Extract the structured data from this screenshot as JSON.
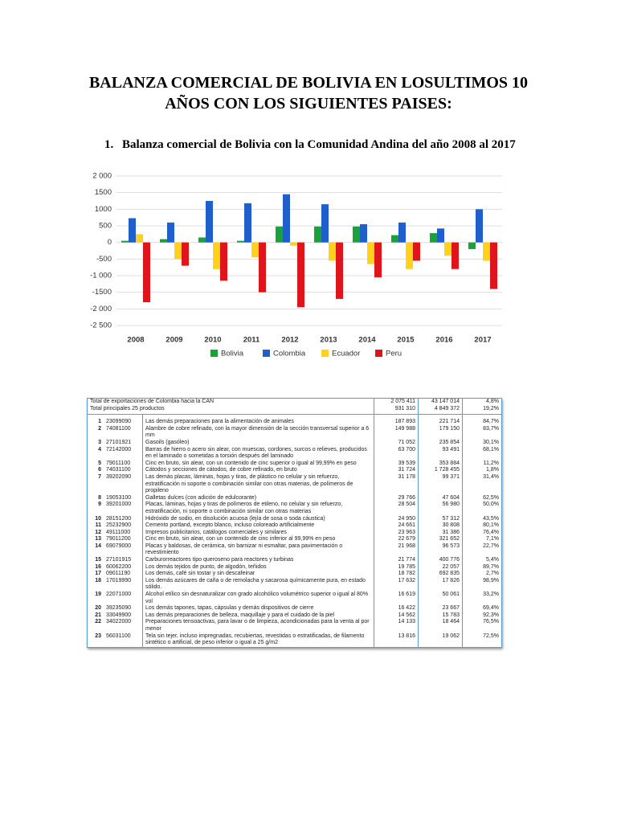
{
  "title": "BALANZA COMERCIAL DE BOLIVIA EN LOSULTIMOS 10 AÑOS CON LOS SIGUIENTES PAISES:",
  "section": {
    "number": "1.",
    "text": "Balanza comercial de Bolivia con la Comunidad Andina del año 2008 al 2017"
  },
  "chart_data": {
    "type": "bar",
    "categories": [
      "2008",
      "2009",
      "2010",
      "2011",
      "2012",
      "2013",
      "2014",
      "2015",
      "2016",
      "2017"
    ],
    "series": [
      {
        "name": "Bolivia",
        "color": "#1aa23a",
        "values": [
          50,
          100,
          150,
          50,
          480,
          480,
          480,
          220,
          280,
          -200
        ]
      },
      {
        "name": "Colombia",
        "color": "#1f5fcc",
        "values": [
          730,
          600,
          1250,
          1180,
          1450,
          1150,
          550,
          600,
          420,
          1000
        ]
      },
      {
        "name": "Ecuador",
        "color": "#ffd21a",
        "values": [
          250,
          -500,
          -800,
          -450,
          -100,
          -550,
          -650,
          -800,
          -400,
          -550
        ]
      },
      {
        "name": "Peru",
        "color": "#e0141b",
        "values": [
          -1800,
          -700,
          -1150,
          -1500,
          -1950,
          -1700,
          -1050,
          -550,
          -800,
          -1400
        ]
      }
    ],
    "ylim": [
      -2500,
      2000
    ],
    "yticks": [
      {
        "value": 2000,
        "label": "2 000"
      },
      1500,
      1000,
      500,
      0,
      -500,
      {
        "value": -1000,
        "label": "-1 000"
      },
      -1500,
      {
        "value": -2000,
        "label": "-2 000"
      },
      {
        "value": -2500,
        "label": "-2 500"
      }
    ],
    "grid": true
  },
  "table": {
    "header": [
      [
        "Total de exportaciones de Colombia hacia la CAN",
        "2 075 411",
        "43 147 014",
        "4,8%"
      ],
      [
        "Total principales 25 productos",
        "931 310",
        "4 849 372",
        "19,2%"
      ]
    ],
    "rows": [
      [
        "1",
        "23099090",
        "Las demás preparaciones para la alimentación de animales",
        "187 893",
        "221 714",
        "84,7%"
      ],
      [
        "2",
        "74081100",
        "Alambre de cobre refinado, con la mayor dimensión de la sección transversal superior a 6 mm",
        "149 988",
        "179 150",
        "83,7%"
      ],
      [
        "3",
        "27101921",
        "Gasoils (gasóleo)",
        "71 052",
        "235 854",
        "30,1%"
      ],
      [
        "4",
        "72142000",
        "Barras de hierro o acero sin alear, con muescas, cordones, surcos o relieves, producidos en el laminado o sometidas a torsión después del laminado",
        "63 700",
        "93 491",
        "68,1%"
      ],
      [
        "5",
        "79011100",
        "Cinc en bruto, sin alear, con un contenido de cinc superior o igual al 99,99% en peso",
        "39 539",
        "353 884",
        "11,2%"
      ],
      [
        "6",
        "74031100",
        "Cátodos y secciones de cátodos, de cobre refinado, en bruto",
        "31 724",
        "1 728 455",
        "1,8%"
      ],
      [
        "7",
        "39202090",
        "Las demás placas, láminas, hojas y tiras, de plástico no celular y sin refuerzo, estratificación ni soporte o combinación similar con otras materias, de polímeros de propileno",
        "31 178",
        "99 371",
        "31,4%"
      ],
      [
        "8",
        "19053100",
        "Galletas dulces (con adición de edulcorante)",
        "29 766",
        "47 604",
        "62,5%"
      ],
      [
        "9",
        "39201000",
        "Placas, láminas, hojas y tiras de polímeros de etileno, no celular y sin refuerzo, estratificación, ni soporte o combinación similar con otras materias",
        "28 504",
        "56 980",
        "50,0%"
      ],
      [
        "10",
        "28151200",
        "Hidróxido de sodio, en disolución acuosa (lejía de sosa o soda cáustica)",
        "24 950",
        "57 312",
        "43,5%"
      ],
      [
        "11",
        "25232900",
        "Cemento portland, excepto blanco, incluso coloreado artificialmente",
        "24 661",
        "30 808",
        "80,1%"
      ],
      [
        "12",
        "49111000",
        "Impresos publicitarios, catálogos comerciales y similares",
        "23 963",
        "31 386",
        "76,4%"
      ],
      [
        "13",
        "79011200",
        "Cinc en bruto, sin alear, con un contenido de cinc inferior al 99,99% en peso",
        "22 679",
        "321 652",
        "7,1%"
      ],
      [
        "14",
        "69079000",
        "Placas y baldosas, de cerámica, sin barnizar ni esmaltar, para pavimentación o revestimiento",
        "21 968",
        "96 573",
        "22,7%"
      ],
      [
        "15",
        "27101915",
        "Carburorreactores tipo queroseno para reactores y turbinas",
        "21 774",
        "400 776",
        "5,4%"
      ],
      [
        "16",
        "60062200",
        "Los demás tejidos de punto, de algodón, teñidos",
        "19 785",
        "22 057",
        "89,7%"
      ],
      [
        "17",
        "09011190",
        "Los demás, café sin tostar y sin descafeinar",
        "18 782",
        "692 835",
        "2,7%"
      ],
      [
        "18",
        "17019990",
        "Los demás azúcares de caña o de remolacha y sacarosa químicamente pura, en estado sólido.",
        "17 632",
        "17 826",
        "98,9%"
      ],
      [
        "19",
        "22071000",
        "Alcohol etílico sin desnaturalizar con grado alcohólico volumétrico superior o igual al 80% vol",
        "16 619",
        "50 061",
        "33,2%"
      ],
      [
        "20",
        "39235090",
        "Los demás tapones, tapas, cápsulas y demás dispositivos de cierre",
        "16 422",
        "23 667",
        "69,4%"
      ],
      [
        "21",
        "33049900",
        "Las demás preparaciones de belleza, maquillaje y para el cuidado de la piel",
        "14 562",
        "15 783",
        "92,3%"
      ],
      [
        "22",
        "34022000",
        "Preparaciones tensoactivas, para lavar o de limpieza, acondicionadas para la venta al por menor",
        "14 133",
        "18 464",
        "76,5%"
      ],
      [
        "23",
        "56031100",
        "Tela sin tejer, incluso impregnadas, recubiertas, revestidas o estratificadas, de filamento sintético o artificial, de peso inferior o igual a 25 g/m2",
        "13 816",
        "19 062",
        "72,5%"
      ]
    ]
  }
}
